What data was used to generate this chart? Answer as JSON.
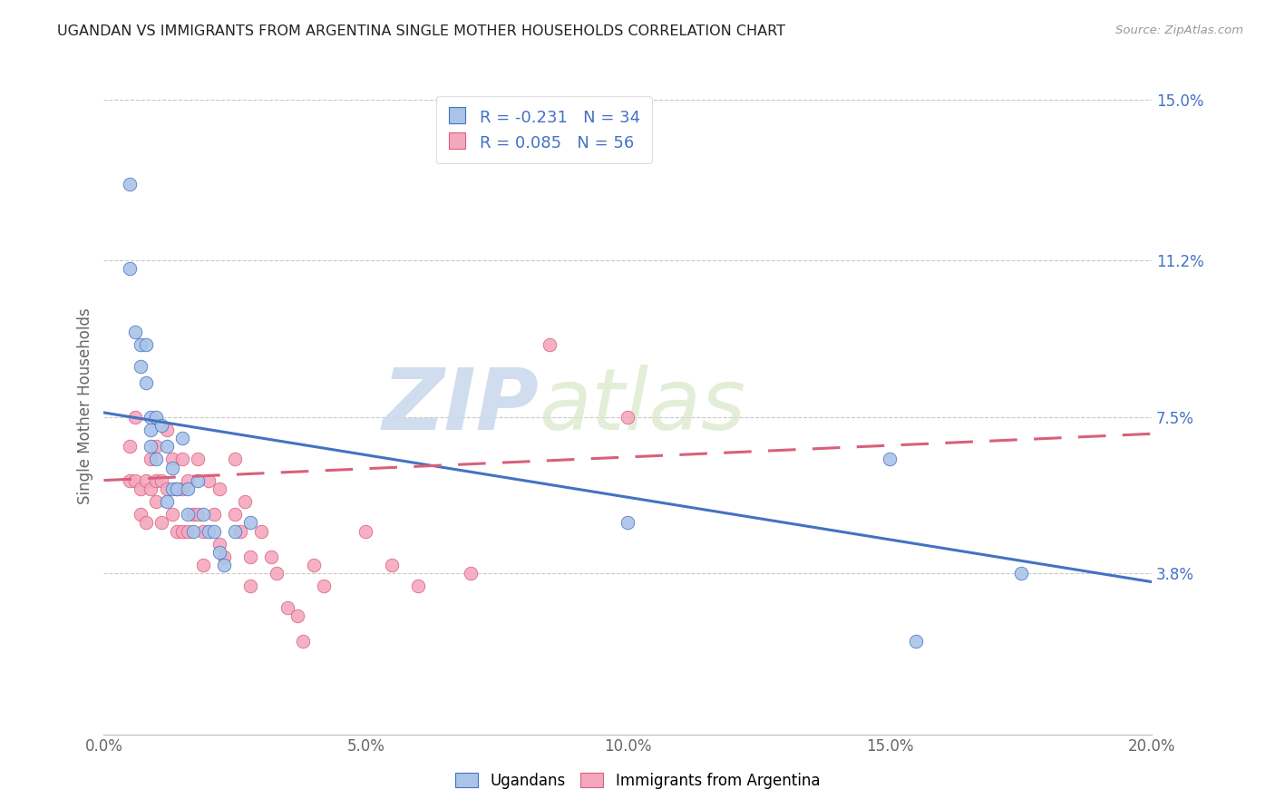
{
  "title": "UGANDAN VS IMMIGRANTS FROM ARGENTINA SINGLE MOTHER HOUSEHOLDS CORRELATION CHART",
  "source": "Source: ZipAtlas.com",
  "ylabel": "Single Mother Households",
  "xlim": [
    0.0,
    0.2
  ],
  "ylim": [
    0.0,
    0.155
  ],
  "xtick_labels": [
    "0.0%",
    "5.0%",
    "10.0%",
    "15.0%",
    "20.0%"
  ],
  "xtick_vals": [
    0.0,
    0.05,
    0.1,
    0.15,
    0.2
  ],
  "ytick_labels_right": [
    "3.8%",
    "7.5%",
    "11.2%",
    "15.0%"
  ],
  "ytick_vals_right": [
    0.038,
    0.075,
    0.112,
    0.15
  ],
  "blue_R": -0.231,
  "blue_N": 34,
  "pink_R": 0.085,
  "pink_N": 56,
  "blue_color": "#aac4e8",
  "blue_line_color": "#4472c4",
  "pink_color": "#f4a8c0",
  "pink_line_color": "#d9607a",
  "legend_label_blue": "Ugandans",
  "legend_label_pink": "Immigrants from Argentina",
  "watermark_zip": "ZIP",
  "watermark_atlas": "atlas",
  "ugandan_x": [
    0.005,
    0.005,
    0.006,
    0.007,
    0.007,
    0.008,
    0.008,
    0.009,
    0.009,
    0.009,
    0.01,
    0.01,
    0.011,
    0.012,
    0.012,
    0.013,
    0.013,
    0.014,
    0.015,
    0.016,
    0.016,
    0.017,
    0.018,
    0.019,
    0.02,
    0.021,
    0.022,
    0.023,
    0.025,
    0.028,
    0.1,
    0.15,
    0.155,
    0.175
  ],
  "ugandan_y": [
    0.13,
    0.11,
    0.095,
    0.092,
    0.087,
    0.092,
    0.083,
    0.075,
    0.072,
    0.068,
    0.075,
    0.065,
    0.073,
    0.068,
    0.055,
    0.063,
    0.058,
    0.058,
    0.07,
    0.058,
    0.052,
    0.048,
    0.06,
    0.052,
    0.048,
    0.048,
    0.043,
    0.04,
    0.048,
    0.05,
    0.05,
    0.065,
    0.022,
    0.038
  ],
  "argentina_x": [
    0.005,
    0.005,
    0.006,
    0.006,
    0.007,
    0.007,
    0.008,
    0.008,
    0.009,
    0.009,
    0.01,
    0.01,
    0.01,
    0.011,
    0.011,
    0.012,
    0.012,
    0.013,
    0.013,
    0.014,
    0.014,
    0.015,
    0.015,
    0.015,
    0.016,
    0.016,
    0.017,
    0.018,
    0.018,
    0.019,
    0.019,
    0.02,
    0.021,
    0.022,
    0.022,
    0.023,
    0.025,
    0.025,
    0.026,
    0.027,
    0.028,
    0.028,
    0.03,
    0.032,
    0.033,
    0.035,
    0.037,
    0.038,
    0.04,
    0.042,
    0.05,
    0.055,
    0.06,
    0.07,
    0.085,
    0.1
  ],
  "argentina_y": [
    0.068,
    0.06,
    0.075,
    0.06,
    0.058,
    0.052,
    0.06,
    0.05,
    0.065,
    0.058,
    0.068,
    0.06,
    0.055,
    0.06,
    0.05,
    0.072,
    0.058,
    0.065,
    0.052,
    0.058,
    0.048,
    0.065,
    0.058,
    0.048,
    0.06,
    0.048,
    0.052,
    0.065,
    0.052,
    0.048,
    0.04,
    0.06,
    0.052,
    0.058,
    0.045,
    0.042,
    0.065,
    0.052,
    0.048,
    0.055,
    0.042,
    0.035,
    0.048,
    0.042,
    0.038,
    0.03,
    0.028,
    0.022,
    0.04,
    0.035,
    0.048,
    0.04,
    0.035,
    0.038,
    0.092,
    0.075
  ],
  "blue_line_x0": 0.0,
  "blue_line_y0": 0.076,
  "blue_line_x1": 0.2,
  "blue_line_y1": 0.036,
  "pink_line_x0": 0.0,
  "pink_line_y0": 0.06,
  "pink_line_x1": 0.2,
  "pink_line_y1": 0.071
}
